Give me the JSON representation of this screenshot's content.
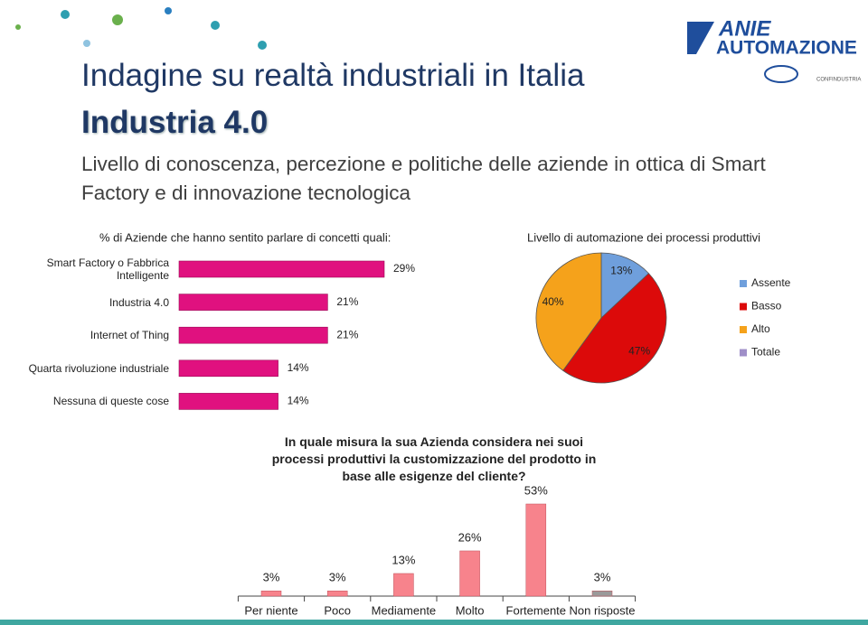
{
  "slide": {
    "title": "Indagine su realtà industriali in Italia",
    "subtitle": "Industria 4.0",
    "description": "Livello di conoscenza, percezione e politiche delle aziende in ottica di Smart Factory e di innovazione tecnologica",
    "logo": {
      "brand": "ANIE",
      "product": "AUTOMAZIONE",
      "partner": "CONFINDUSTRIA"
    }
  },
  "chart_data": [
    {
      "type": "barh",
      "title": "% di Aziende che hanno sentito parlare di concetti quali:",
      "categories": [
        "Smart Factory o Fabbrica Intelligente",
        "Industria 4.0",
        "Internet of Thing",
        "Quarta rivoluzione industriale",
        "Nessuna di queste cose"
      ],
      "values": [
        29,
        21,
        21,
        14,
        14
      ],
      "value_labels": [
        "29%",
        "21%",
        "21%",
        "14%",
        "14%"
      ],
      "color": "#e0117f"
    },
    {
      "type": "pie",
      "title": "Livello di automazione dei processi produttivi",
      "categories": [
        "Assente",
        "Basso",
        "Alto",
        "Totale"
      ],
      "values": [
        13,
        47,
        40,
        null
      ],
      "value_labels": [
        "13%",
        "47%",
        "40%",
        null
      ],
      "colors": [
        "#6f9fdc",
        "#dc0a0a",
        "#f5a21b",
        "#9f8fc8"
      ],
      "legend": "right"
    },
    {
      "type": "bar",
      "title": "In quale misura la sua Azienda considera nei suoi processi produttivi la customizzazione del prodotto in base alle esigenze del cliente?",
      "categories": [
        "Per niente",
        "Poco",
        "Mediamente",
        "Molto",
        "Fortemente",
        "Non risposte"
      ],
      "values": [
        3,
        3,
        13,
        26,
        53,
        3
      ],
      "value_labels": [
        "3%",
        "3%",
        "13%",
        "26%",
        "53%",
        "3%"
      ],
      "colors": [
        "#f7838c",
        "#f7838c",
        "#f7838c",
        "#f7838c",
        "#f7838c",
        "#9a9a9a"
      ]
    }
  ]
}
